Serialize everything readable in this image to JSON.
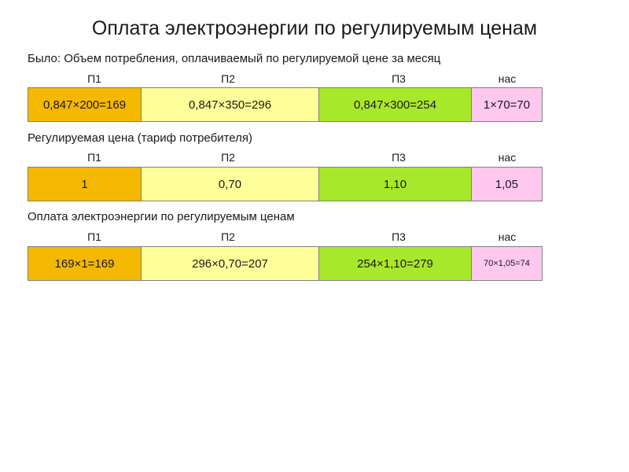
{
  "title": "Оплата электроэнергии по регулируемым ценам",
  "columns": [
    "П1",
    "П2",
    "П3",
    "нас"
  ],
  "sections": [
    {
      "label": "Было: Объем потребления, оплачиваемый по регулируемой цене за месяц",
      "cells": [
        "0,847×200=169",
        "0,847×350=296",
        "0,847×300=254",
        "1×70=70"
      ]
    },
    {
      "label": "Регулируемая цена (тариф потребителя)",
      "cells": [
        "1",
        "0,70",
        "1,10",
        "1,05"
      ]
    },
    {
      "label": "Оплата электроэнергии по регулируемым ценам",
      "cells": [
        "169×1=169",
        "296×0,70=207",
        "254×1,10=279",
        "70×1,05=74"
      ]
    }
  ],
  "colors": {
    "p1": "#f5b800",
    "p2": "#ffff99",
    "p3": "#a8e82a",
    "nas": "#ffc8ee"
  }
}
